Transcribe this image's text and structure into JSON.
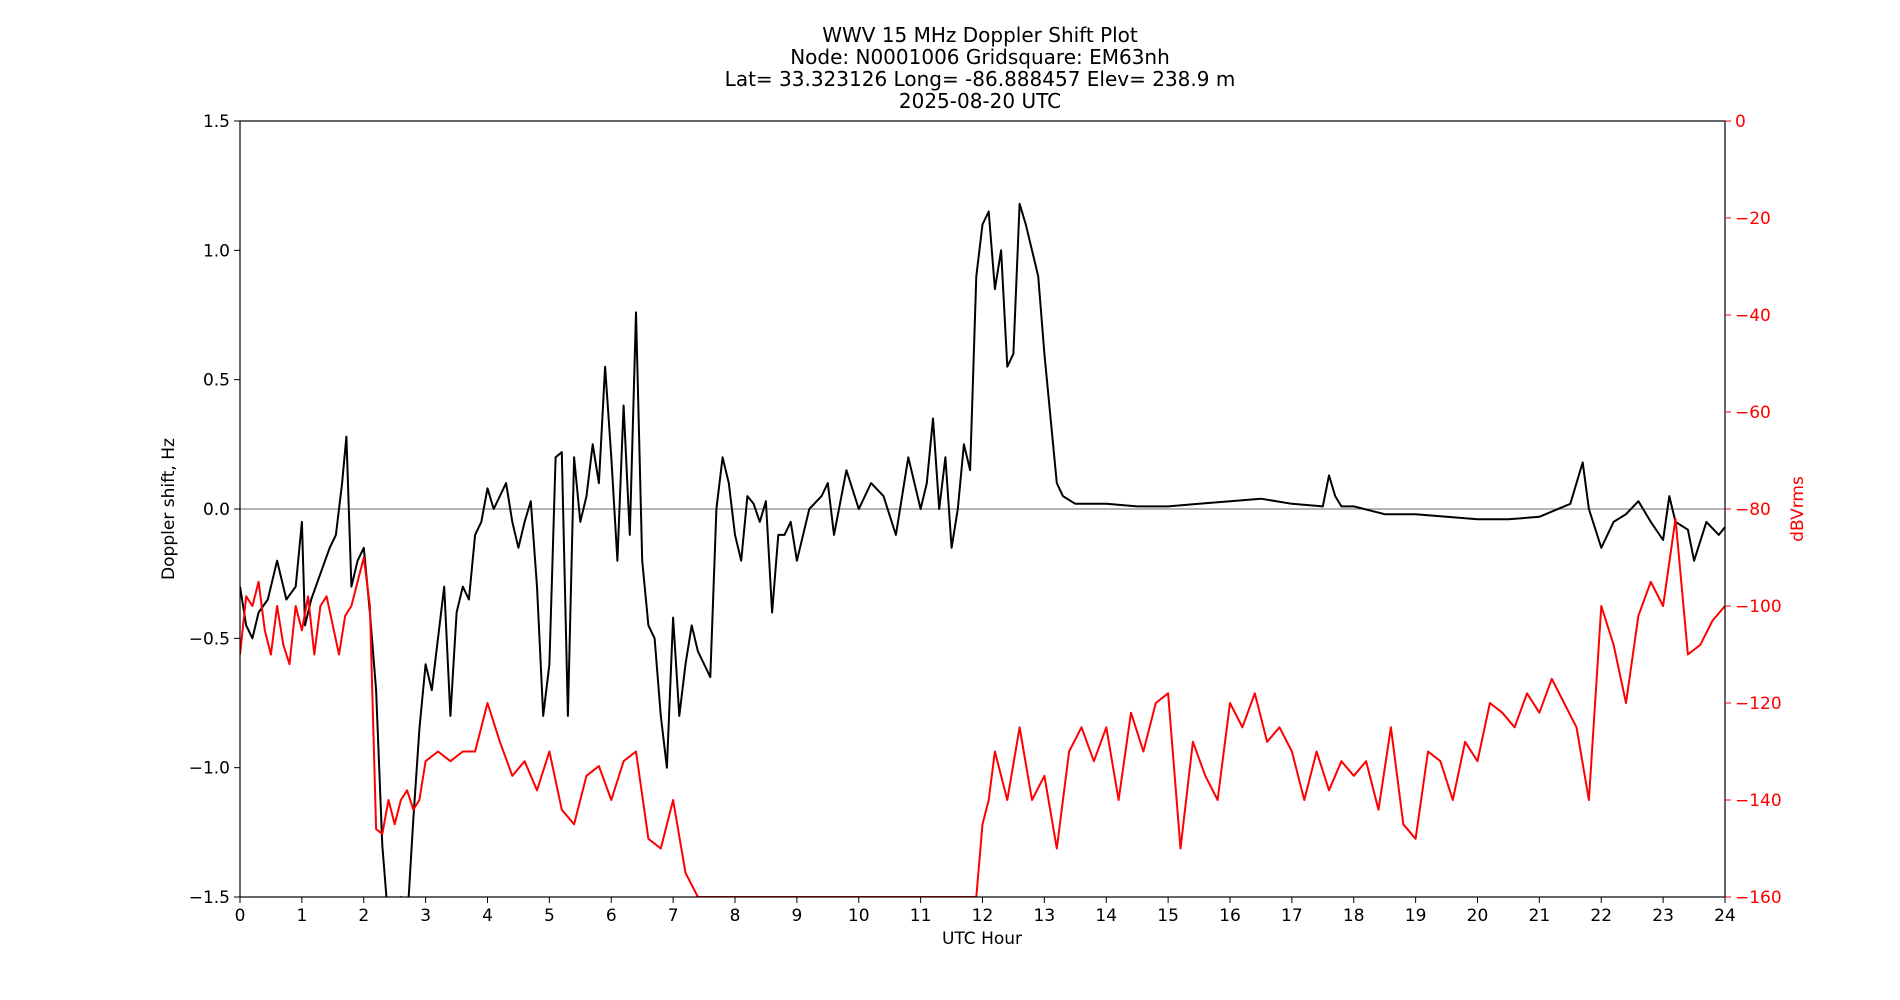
{
  "chart_data": {
    "type": "line",
    "title_lines": [
      "WWV 15 MHz Doppler Shift Plot",
      "Node:  N0001006     Gridsquare:  EM63nh",
      "Lat= 33.323126    Long= -86.888457    Elev= 238.9 m",
      "2025-08-20  UTC"
    ],
    "xlabel": "UTC Hour",
    "ylabel": "Doppler shift, Hz",
    "y2label": "dBVrms",
    "xlim": [
      0,
      24
    ],
    "ylim": [
      -1.5,
      1.5
    ],
    "y2lim": [
      -160,
      0
    ],
    "x_ticks": [
      "0",
      "1",
      "2",
      "3",
      "4",
      "5",
      "6",
      "7",
      "8",
      "9",
      "10",
      "11",
      "12",
      "13",
      "14",
      "15",
      "16",
      "17",
      "18",
      "19",
      "20",
      "21",
      "22",
      "23",
      "24"
    ],
    "y_ticks": [
      "1.5",
      "1.0",
      "0.5",
      "0.0",
      "−0.5",
      "−1.0",
      "−1.5"
    ],
    "y2_ticks": [
      "0",
      "−20",
      "−40",
      "−60",
      "−80",
      "−100",
      "−120",
      "−140",
      "−160"
    ],
    "y_tick_values": [
      1.5,
      1.0,
      0.5,
      0.0,
      -0.5,
      -1.0,
      -1.5
    ],
    "y2_tick_values": [
      0,
      -20,
      -40,
      -60,
      -80,
      -100,
      -120,
      -140,
      -160
    ],
    "zero_line": 0.0,
    "colors": {
      "doppler": "#000000",
      "power": "#ff0000",
      "zero_line": "#888888"
    },
    "series": [
      {
        "axis": "left",
        "x": [
          0,
          0.1,
          0.2,
          0.3,
          0.45,
          0.6,
          0.75,
          0.9,
          1.0,
          1.05,
          1.15,
          1.3,
          1.45,
          1.55,
          1.65,
          1.72,
          1.8,
          1.9,
          2.0,
          2.1,
          2.2,
          2.3,
          2.4,
          2.5,
          2.6,
          2.7,
          2.8,
          2.9,
          3.0,
          3.1,
          3.2,
          3.3,
          3.4,
          3.5,
          3.6,
          3.7,
          3.8,
          3.9,
          4.0,
          4.1,
          4.2,
          4.3,
          4.4,
          4.5,
          4.6,
          4.7,
          4.8,
          4.9,
          5.0,
          5.1,
          5.2,
          5.3,
          5.4,
          5.5,
          5.6,
          5.7,
          5.8,
          5.9,
          6.0,
          6.1,
          6.2,
          6.3,
          6.4,
          6.5,
          6.6,
          6.7,
          6.8,
          6.9,
          7.0,
          7.1,
          7.2,
          7.3,
          7.4,
          7.5,
          7.6,
          7.7,
          7.8,
          7.9,
          8.0,
          8.1,
          8.2,
          8.3,
          8.4,
          8.5,
          8.6,
          8.7,
          8.8,
          8.9,
          9.0,
          9.2,
          9.4,
          9.5,
          9.6,
          9.8,
          10.0,
          10.2,
          10.4,
          10.6,
          10.8,
          11.0,
          11.1,
          11.2,
          11.3,
          11.4,
          11.5,
          11.6,
          11.7,
          11.8,
          11.9,
          12.0,
          12.1,
          12.2,
          12.3,
          12.4,
          12.5,
          12.6,
          12.7,
          12.8,
          12.9,
          13.0,
          13.1,
          13.2,
          13.3,
          13.5,
          14.0,
          14.5,
          15.0,
          15.5,
          16.0,
          16.5,
          17.0,
          17.5,
          17.6,
          17.7,
          17.8,
          18.0,
          18.5,
          19.0,
          19.5,
          20.0,
          20.5,
          21.0,
          21.5,
          21.7,
          21.8,
          22.0,
          22.2,
          22.4,
          22.6,
          22.8,
          23.0,
          23.1,
          23.2,
          23.4,
          23.5,
          23.7,
          23.9,
          24.0
        ],
        "y": [
          -0.3,
          -0.45,
          -0.5,
          -0.4,
          -0.35,
          -0.2,
          -0.35,
          -0.3,
          -0.05,
          -0.45,
          -0.35,
          -0.25,
          -0.15,
          -0.1,
          0.1,
          0.28,
          -0.3,
          -0.2,
          -0.15,
          -0.4,
          -0.7,
          -1.3,
          -1.6,
          -1.7,
          -1.5,
          -1.6,
          -1.2,
          -0.85,
          -0.6,
          -0.7,
          -0.5,
          -0.3,
          -0.8,
          -0.4,
          -0.3,
          -0.35,
          -0.1,
          -0.05,
          0.08,
          0.0,
          0.05,
          0.1,
          -0.05,
          -0.15,
          -0.05,
          0.03,
          -0.3,
          -0.8,
          -0.6,
          0.2,
          0.22,
          -0.8,
          0.2,
          -0.05,
          0.05,
          0.25,
          0.1,
          0.55,
          0.2,
          -0.2,
          0.4,
          -0.1,
          0.76,
          -0.2,
          -0.45,
          -0.5,
          -0.8,
          -1.0,
          -0.42,
          -0.8,
          -0.6,
          -0.45,
          -0.55,
          -0.6,
          -0.65,
          0.0,
          0.2,
          0.1,
          -0.1,
          -0.2,
          0.05,
          0.02,
          -0.05,
          0.03,
          -0.4,
          -0.1,
          -0.1,
          -0.05,
          -0.2,
          0.0,
          0.05,
          0.1,
          -0.1,
          0.15,
          0.0,
          0.1,
          0.05,
          -0.1,
          0.2,
          0.0,
          0.1,
          0.35,
          0.0,
          0.2,
          -0.15,
          0.0,
          0.25,
          0.15,
          0.9,
          1.1,
          1.15,
          0.85,
          1.0,
          0.55,
          0.6,
          1.18,
          1.1,
          1.0,
          0.9,
          0.6,
          0.35,
          0.1,
          0.05,
          0.02,
          0.02,
          0.01,
          0.01,
          0.02,
          0.03,
          0.04,
          0.02,
          0.01,
          0.13,
          0.05,
          0.01,
          0.01,
          -0.02,
          -0.02,
          -0.03,
          -0.04,
          -0.04,
          -0.03,
          0.02,
          0.18,
          0.0,
          -0.15,
          -0.05,
          -0.02,
          0.03,
          -0.05,
          -0.12,
          0.05,
          -0.05,
          -0.08,
          -0.2,
          -0.05,
          -0.1,
          -0.07
        ]
      },
      {
        "axis": "right",
        "x": [
          0,
          0.1,
          0.2,
          0.3,
          0.4,
          0.5,
          0.6,
          0.7,
          0.8,
          0.9,
          1.0,
          1.1,
          1.2,
          1.3,
          1.4,
          1.5,
          1.6,
          1.7,
          1.8,
          1.9,
          2.0,
          2.1,
          2.2,
          2.3,
          2.4,
          2.5,
          2.6,
          2.7,
          2.8,
          2.9,
          3.0,
          3.2,
          3.4,
          3.6,
          3.8,
          4.0,
          4.2,
          4.4,
          4.6,
          4.8,
          5.0,
          5.2,
          5.4,
          5.6,
          5.8,
          6.0,
          6.2,
          6.4,
          6.6,
          6.8,
          7.0,
          7.2,
          7.4,
          11.9,
          12.0,
          12.1,
          12.2,
          12.4,
          12.6,
          12.8,
          13.0,
          13.2,
          13.4,
          13.6,
          13.8,
          14.0,
          14.2,
          14.4,
          14.6,
          14.8,
          15.0,
          15.2,
          15.4,
          15.6,
          15.8,
          16.0,
          16.2,
          16.4,
          16.6,
          16.8,
          17.0,
          17.2,
          17.4,
          17.6,
          17.8,
          18.0,
          18.2,
          18.4,
          18.6,
          18.8,
          19.0,
          19.2,
          19.4,
          19.6,
          19.8,
          20.0,
          20.2,
          20.4,
          20.6,
          20.8,
          21.0,
          21.2,
          21.4,
          21.6,
          21.8,
          22.0,
          22.2,
          22.4,
          22.6,
          22.8,
          23.0,
          23.2,
          23.4,
          23.6,
          23.8,
          24.0
        ],
        "y": [
          -110,
          -98,
          -100,
          -95,
          -105,
          -110,
          -100,
          -108,
          -112,
          -100,
          -105,
          -98,
          -110,
          -100,
          -98,
          -104,
          -110,
          -102,
          -100,
          -95,
          -90,
          -100,
          -146,
          -147,
          -140,
          -145,
          -140,
          -138,
          -142,
          -140,
          -132,
          -130,
          -132,
          -130,
          -130,
          -120,
          -128,
          -135,
          -132,
          -138,
          -130,
          -142,
          -145,
          -135,
          -133,
          -140,
          -132,
          -130,
          -148,
          -150,
          -140,
          -155,
          -160,
          -160,
          -145,
          -140,
          -130,
          -140,
          -125,
          -140,
          -135,
          -150,
          -130,
          -125,
          -132,
          -125,
          -140,
          -122,
          -130,
          -120,
          -118,
          -150,
          -128,
          -135,
          -140,
          -120,
          -125,
          -118,
          -128,
          -125,
          -130,
          -140,
          -130,
          -138,
          -132,
          -135,
          -132,
          -142,
          -125,
          -145,
          -148,
          -130,
          -132,
          -140,
          -128,
          -132,
          -120,
          -122,
          -125,
          -118,
          -122,
          -115,
          -120,
          -125,
          -140,
          -100,
          -108,
          -120,
          -102,
          -95,
          -100,
          -82,
          -110,
          -108,
          -103,
          -100
        ]
      }
    ]
  }
}
